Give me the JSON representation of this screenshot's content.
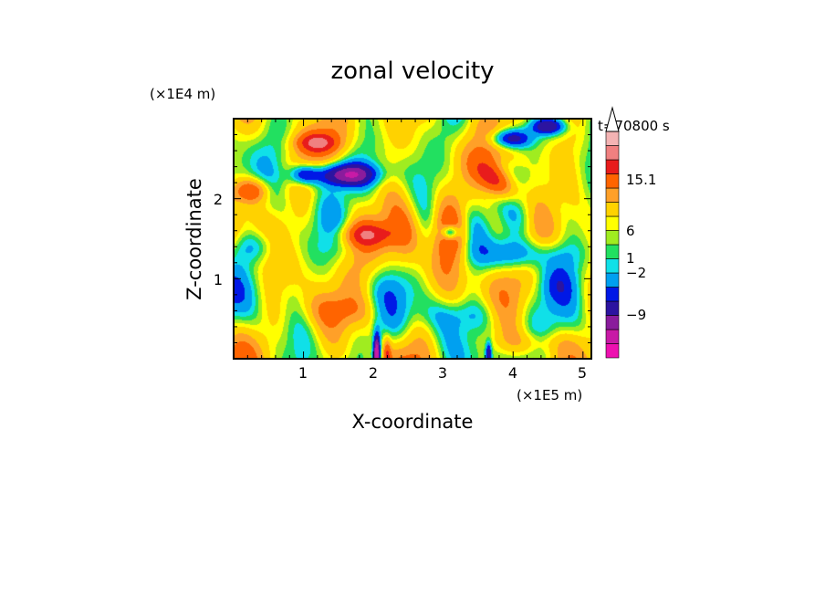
{
  "chart_data": {
    "type": "heatmap",
    "title": "zonal velocity",
    "time_label": "t=70800 s",
    "xlabel": "X-coordinate",
    "ylabel": "Z-coordinate",
    "x_unit_label": "(×1E5 m)",
    "y_unit_label": "(×1E4 m)",
    "x_ticks": [
      "1",
      "2",
      "3",
      "4",
      "5"
    ],
    "y_ticks": [
      "1",
      "2"
    ],
    "xlim": [
      0,
      5.12
    ],
    "ylim": [
      0,
      3.0
    ],
    "colorbar": {
      "labels": [
        "15.1",
        "6",
        "1",
        "−2",
        "−9"
      ],
      "label_values": [
        15.1,
        6,
        1,
        -2,
        -9
      ],
      "levels": [
        -16,
        -12,
        -9,
        -6,
        -4,
        -2,
        -1,
        0,
        1,
        2,
        4,
        6,
        9,
        12,
        15.1
      ],
      "colors": [
        "#ee10b0",
        "#c81aa6",
        "#8a1c9c",
        "#2c14a0",
        "#0018e6",
        "#00a0f0",
        "#10e0e8",
        "#22e060",
        "#a0ec20",
        "#ffff00",
        "#ffd200",
        "#ffa028",
        "#ff6400",
        "#e81c1c",
        "#f08080",
        "#f4b4b4"
      ],
      "extend": "max"
    },
    "features": [
      {
        "x": 3.1,
        "z": 1.6,
        "amp": 5.0,
        "sx": 0.9,
        "sz": 0.45,
        "k": 3.0,
        "ang": 0.0
      },
      {
        "x": 1.6,
        "z": 2.3,
        "amp": -12.0,
        "sx": 0.45,
        "sz": 0.14,
        "k": 0,
        "ang": 0
      },
      {
        "x": 1.0,
        "z": 2.3,
        "amp": -8.0,
        "sx": 0.2,
        "sz": 0.12,
        "k": 0,
        "ang": 0
      },
      {
        "x": 3.95,
        "z": 2.75,
        "amp": -10.0,
        "sx": 0.3,
        "sz": 0.12,
        "k": 0,
        "ang": 0
      },
      {
        "x": 3.1,
        "z": 1.58,
        "amp": -10.0,
        "sx": 0.12,
        "sz": 0.09,
        "k": 0,
        "ang": 0
      },
      {
        "x": 4.5,
        "z": 2.9,
        "amp": -9.0,
        "sx": 0.25,
        "sz": 0.1,
        "k": 0,
        "ang": 0
      },
      {
        "x": 0.25,
        "z": 2.1,
        "amp": 8.0,
        "sx": 0.25,
        "sz": 0.15,
        "k": 0,
        "ang": 0
      },
      {
        "x": 1.2,
        "z": 2.7,
        "amp": 8.0,
        "sx": 0.3,
        "sz": 0.12,
        "k": 0,
        "ang": 0
      },
      {
        "x": 1.9,
        "z": 1.55,
        "amp": 7.0,
        "sx": 0.4,
        "sz": 0.15,
        "k": 0,
        "ang": 0
      },
      {
        "x": 3.8,
        "z": 2.2,
        "amp": 7.0,
        "sx": 0.35,
        "sz": 0.3,
        "k": 3.5,
        "ang": 0.9
      },
      {
        "x": 0.3,
        "z": 1.4,
        "amp": -4.0,
        "sx": 0.35,
        "sz": 0.2,
        "k": 0,
        "ang": 0
      },
      {
        "x": 4.1,
        "z": 1.3,
        "amp": -6.0,
        "sx": 0.7,
        "sz": 0.2,
        "k": 0,
        "ang": 0
      },
      {
        "x": 4.6,
        "z": 0.95,
        "amp": -4.0,
        "sx": 0.3,
        "sz": 0.25,
        "k": 0,
        "ang": 0
      },
      {
        "x": 3.3,
        "z": 0.55,
        "amp": -3.0,
        "sx": 0.6,
        "sz": 0.2,
        "k": 0,
        "ang": 0
      },
      {
        "x": 1.6,
        "z": 0.6,
        "amp": 3.0,
        "sx": 0.6,
        "sz": 0.2,
        "k": 0,
        "ang": 0
      },
      {
        "x": 2.05,
        "z": 0.05,
        "amp": -18.0,
        "sx": 0.05,
        "sz": 0.25,
        "k": 0,
        "ang": 0
      },
      {
        "x": 2.2,
        "z": 0.05,
        "amp": 6.0,
        "sx": 0.05,
        "sz": 0.2,
        "k": 0,
        "ang": 0
      },
      {
        "x": 3.65,
        "z": 0.05,
        "amp": -9.0,
        "sx": 0.04,
        "sz": 0.15,
        "k": 0,
        "ang": 0
      },
      {
        "x": 4.3,
        "z": 0.2,
        "amp": 3.0,
        "sx": 0.5,
        "sz": 0.15,
        "k": 0,
        "ang": 0
      }
    ]
  }
}
